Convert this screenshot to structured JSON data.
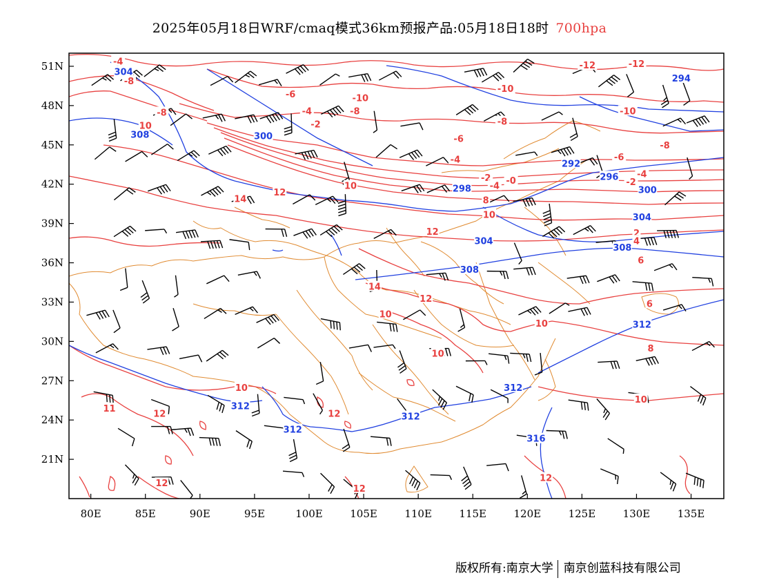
{
  "title": {
    "main": "2025年05月18日WRF/cmaq模式36km预报产品:05月18日18时",
    "level": "700hpa",
    "level_color": "#e8403f"
  },
  "footer": {
    "copyright": "版权所有:南京大学",
    "company": "南京创蓝科技有限公司"
  },
  "axes": {
    "lon_ticks": [
      "80E",
      "85E",
      "90E",
      "95E",
      "100E",
      "105E",
      "110E",
      "115E",
      "120E",
      "125E",
      "130E",
      "135E"
    ],
    "lat_ticks": [
      "51N",
      "48N",
      "45N",
      "42N",
      "39N",
      "36N",
      "33N",
      "30N",
      "27N",
      "24N",
      "21N"
    ],
    "lon_range": [
      78,
      138
    ],
    "lat_range": [
      18,
      52
    ]
  },
  "colors": {
    "temperature": "#e8403f",
    "geopotential": "#2040e0",
    "boundary": "#e08a30",
    "wind": "#000000"
  },
  "height_labels": [
    {
      "text": "304",
      "lon": 83,
      "lat": 50.6
    },
    {
      "text": "308",
      "lon": 84.5,
      "lat": 45.8
    },
    {
      "text": "300",
      "lon": 95.8,
      "lat": 45.7
    },
    {
      "text": "292",
      "lon": 124,
      "lat": 43.6
    },
    {
      "text": "296",
      "lon": 127.5,
      "lat": 42.6
    },
    {
      "text": "300",
      "lon": 131,
      "lat": 41.6
    },
    {
      "text": "304",
      "lon": 130.5,
      "lat": 39.5
    },
    {
      "text": "304",
      "lon": 116,
      "lat": 37.7
    },
    {
      "text": "308",
      "lon": 128.7,
      "lat": 37.2
    },
    {
      "text": "308",
      "lon": 114.7,
      "lat": 35.5
    },
    {
      "text": "312",
      "lon": 130.5,
      "lat": 31.3
    },
    {
      "text": "312",
      "lon": 93.7,
      "lat": 25.1
    },
    {
      "text": "312",
      "lon": 118.7,
      "lat": 26.5
    },
    {
      "text": "312",
      "lon": 109.3,
      "lat": 24.3
    },
    {
      "text": "312",
      "lon": 98.5,
      "lat": 23.3
    },
    {
      "text": "316",
      "lon": 120.8,
      "lat": 22.6
    },
    {
      "text": "294",
      "lon": 134.1,
      "lat": 50.1
    },
    {
      "text": "298",
      "lon": 114,
      "lat": 41.7
    }
  ],
  "temp_labels": [
    {
      "text": "-4",
      "lon": 82.5,
      "lat": 51.4
    },
    {
      "text": "-8",
      "lon": 83.5,
      "lat": 49.9
    },
    {
      "text": "-8",
      "lon": 86.5,
      "lat": 47.5
    },
    {
      "text": "10",
      "lon": 85,
      "lat": 46.5
    },
    {
      "text": "-6",
      "lon": 98.3,
      "lat": 48.9
    },
    {
      "text": "-4",
      "lon": 99.8,
      "lat": 47.6
    },
    {
      "text": "-2",
      "lon": 100.6,
      "lat": 46.6
    },
    {
      "text": "-10",
      "lon": 104.7,
      "lat": 48.6
    },
    {
      "text": "-8",
      "lon": 104.2,
      "lat": 47.6
    },
    {
      "text": "-10",
      "lon": 118,
      "lat": 49.3
    },
    {
      "text": "-8",
      "lon": 117.7,
      "lat": 46.8
    },
    {
      "text": "-10",
      "lon": 129.2,
      "lat": 47.6
    },
    {
      "text": "-12",
      "lon": 125.5,
      "lat": 51.1
    },
    {
      "text": "-12",
      "lon": 130,
      "lat": 51.2
    },
    {
      "text": "-6",
      "lon": 113.7,
      "lat": 45.5
    },
    {
      "text": "-4",
      "lon": 113.4,
      "lat": 43.9
    },
    {
      "text": "-8",
      "lon": 132.6,
      "lat": 45.0
    },
    {
      "text": "-6",
      "lon": 128.4,
      "lat": 44.1
    },
    {
      "text": "-4",
      "lon": 130.5,
      "lat": 42.8
    },
    {
      "text": "-2",
      "lon": 129.5,
      "lat": 42.2
    },
    {
      "text": "-2",
      "lon": 116.2,
      "lat": 42.5
    },
    {
      "text": "-4",
      "lon": 117,
      "lat": 41.9
    },
    {
      "text": "-0",
      "lon": 118.5,
      "lat": 42.3
    },
    {
      "text": "10",
      "lon": 103.8,
      "lat": 41.9
    },
    {
      "text": "8",
      "lon": 116.2,
      "lat": 40.8
    },
    {
      "text": "10",
      "lon": 116.5,
      "lat": 39.7
    },
    {
      "text": "12",
      "lon": 97.3,
      "lat": 41.4
    },
    {
      "text": "14",
      "lon": 93.7,
      "lat": 40.9
    },
    {
      "text": "12",
      "lon": 111.3,
      "lat": 38.4
    },
    {
      "text": "2",
      "lon": 130,
      "lat": 38.3
    },
    {
      "text": "4",
      "lon": 130,
      "lat": 37.7
    },
    {
      "text": "6",
      "lon": 130.4,
      "lat": 36.2
    },
    {
      "text": "14",
      "lon": 106,
      "lat": 34.2
    },
    {
      "text": "12",
      "lon": 110.7,
      "lat": 33.3
    },
    {
      "text": "10",
      "lon": 107,
      "lat": 32.1
    },
    {
      "text": "10",
      "lon": 121.3,
      "lat": 31.4
    },
    {
      "text": "10",
      "lon": 111.8,
      "lat": 29.1
    },
    {
      "text": "6",
      "lon": 131.2,
      "lat": 32.9
    },
    {
      "text": "8",
      "lon": 131.3,
      "lat": 29.5
    },
    {
      "text": "10",
      "lon": 93.8,
      "lat": 26.5
    },
    {
      "text": "10",
      "lon": 130.4,
      "lat": 25.6
    },
    {
      "text": "11",
      "lon": 81.7,
      "lat": 24.9
    },
    {
      "text": "12",
      "lon": 86.3,
      "lat": 24.5
    },
    {
      "text": "12",
      "lon": 102.3,
      "lat": 24.5
    },
    {
      "text": "12",
      "lon": 86.5,
      "lat": 19.2
    },
    {
      "text": "12",
      "lon": 104.6,
      "lat": 18.8
    },
    {
      "text": "12",
      "lon": 121.7,
      "lat": 19.6
    }
  ]
}
